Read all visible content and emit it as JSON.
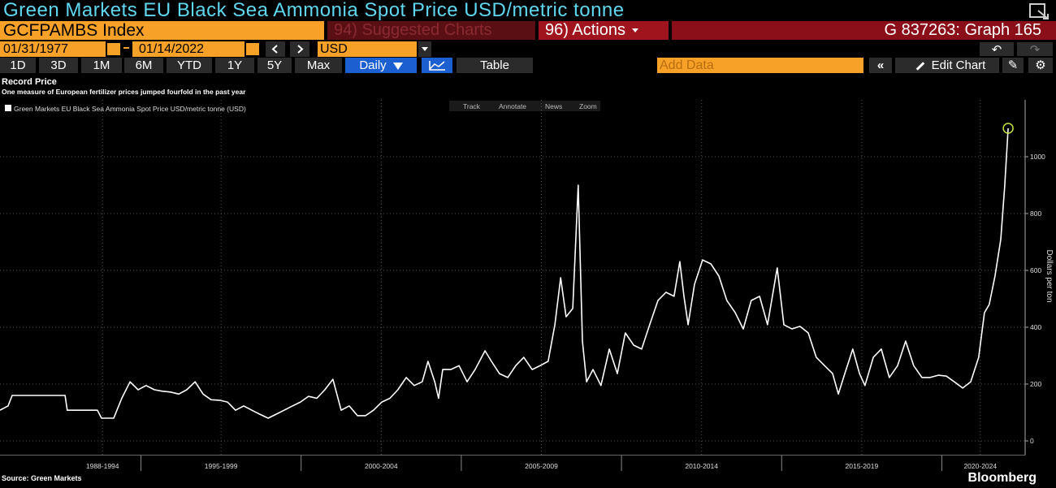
{
  "header": {
    "title": "Green Markets EU Black Sea Ammonia Spot Price USD/metric tonne"
  },
  "toolbar": {
    "ticker": "GCFPAMBS Index",
    "suggested": "94) Suggested Charts",
    "actions": "96) Actions",
    "graph": "G 837263: Graph 165",
    "start_date": "01/31/1977",
    "end_date": "01/14/2022",
    "currency": "USD",
    "periods": [
      "1D",
      "3D",
      "1M",
      "6M",
      "YTD",
      "1Y",
      "5Y",
      "Max"
    ],
    "frequency": "Daily",
    "table": "Table",
    "add_data": "Add Data",
    "edit_chart": "Edit Chart"
  },
  "chart_data": {
    "type": "line",
    "title": "Record Price",
    "subtitle": "One measure of European fertilizer prices jumped fourfold in the past year",
    "y_label": "Dollars per ton",
    "tools": [
      "Track",
      "Annotate",
      "News",
      "Zoom"
    ],
    "source": "Source: Green Markets",
    "brand": "Bloomberg",
    "x": [
      1990.6,
      1990.85,
      1990.98,
      1991.11,
      1992.63,
      1992.7,
      1993.64,
      1993.77,
      1994.15,
      1994.4,
      1994.66,
      1994.91,
      1995.16,
      1995.42,
      1995.67,
      1995.92,
      1996.18,
      1996.43,
      1996.69,
      1996.94,
      1997.19,
      1997.45,
      1997.7,
      1997.95,
      1998.21,
      1998.46,
      1998.71,
      1998.97,
      1999.22,
      1999.47,
      1999.73,
      1999.98,
      2000.23,
      2000.49,
      2000.74,
      2000.99,
      2001.25,
      2001.5,
      2001.76,
      2002.01,
      2002.26,
      2002.52,
      2002.77,
      2003.02,
      2003.28,
      2003.53,
      2003.78,
      2003.96,
      2004.17,
      2004.29,
      2004.42,
      2004.67,
      2004.93,
      2005.18,
      2005.43,
      2005.74,
      2005.94,
      2006.19,
      2006.45,
      2006.7,
      2006.95,
      2007.21,
      2007.46,
      2007.71,
      2007.92,
      2008.1,
      2008.27,
      2008.48,
      2008.65,
      2008.78,
      2008.91,
      2009.11,
      2009.36,
      2009.62,
      2009.87,
      2010.12,
      2010.38,
      2010.63,
      2010.88,
      2011.14,
      2011.39,
      2011.64,
      2011.82,
      2011.95,
      2012.08,
      2012.28,
      2012.53,
      2012.79,
      2013.04,
      2013.29,
      2013.55,
      2013.8,
      2014.05,
      2014.31,
      2014.56,
      2014.86,
      2015.07,
      2015.32,
      2015.57,
      2015.83,
      2016.08,
      2016.34,
      2016.59,
      2016.77,
      2016.97,
      2017.22,
      2017.43,
      2017.6,
      2017.86,
      2018.11,
      2018.36,
      2018.62,
      2018.87,
      2019.12,
      2019.38,
      2019.63,
      2019.89,
      2020.14,
      2020.39,
      2020.65,
      2020.9,
      2021.15,
      2021.33,
      2021.48,
      2021.66,
      2021.84,
      2021.96,
      2022.07
    ],
    "series": [
      {
        "name": "Green Markets EU Black Sea Ammonia Spot Price USD/metric tonne (USD)",
        "color": "#ffffff",
        "values": [
          108,
          123,
          160,
          160,
          160,
          108,
          108,
          80,
          80,
          150,
          208,
          180,
          195,
          180,
          175,
          172,
          165,
          180,
          208,
          165,
          145,
          143,
          137,
          108,
          123,
          108,
          94,
          80,
          94,
          108,
          123,
          137,
          157,
          150,
          180,
          217,
          108,
          123,
          89,
          89,
          108,
          137,
          150,
          180,
          223,
          195,
          208,
          280,
          208,
          150,
          251,
          251,
          265,
          208,
          251,
          317,
          280,
          237,
          223,
          265,
          294,
          251,
          265,
          280,
          409,
          574,
          437,
          466,
          900,
          351,
          208,
          251,
          195,
          323,
          237,
          380,
          337,
          323,
          409,
          494,
          523,
          509,
          631,
          509,
          409,
          551,
          637,
          623,
          580,
          494,
          451,
          394,
          494,
          509,
          409,
          609,
          409,
          394,
          403,
          380,
          294,
          265,
          237,
          165,
          237,
          323,
          237,
          195,
          294,
          323,
          223,
          265,
          351,
          265,
          223,
          223,
          231,
          228,
          208,
          186,
          208,
          294,
          451,
          480,
          580,
          709,
          894,
          1100
        ]
      }
    ],
    "xlim": [
      1990.6,
      2022.6
    ],
    "ylim": [
      -50,
      1200
    ],
    "yticks": [
      0,
      200,
      400,
      600,
      800,
      1000
    ],
    "xticks": [
      {
        "value": 1993.8,
        "label": "1988-1994"
      },
      {
        "value": 1997.5,
        "label": "1995-1999"
      },
      {
        "value": 2002.5,
        "label": "2000-2004"
      },
      {
        "value": 2007.5,
        "label": "2005-2009"
      },
      {
        "value": 2012.5,
        "label": "2010-2014"
      },
      {
        "value": 2017.5,
        "label": "2015-2019"
      },
      {
        "value": 2021.2,
        "label": "2020-2024"
      }
    ],
    "x_separators": [
      1995,
      2000,
      2005,
      2010,
      2015,
      2020
    ],
    "grid": true,
    "marker_color": "#c8e03c"
  }
}
